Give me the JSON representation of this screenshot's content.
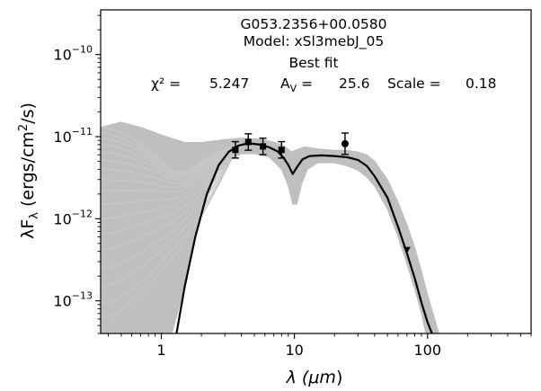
{
  "chart_data": {
    "type": "scatter",
    "title_lines": [
      "G053.2356+00.0580",
      "Model: xSl3mebJ_05",
      "Best fit"
    ],
    "fit": {
      "chi2_label": "χ² =",
      "chi2_value": "5.247",
      "av_label": "A",
      "av_sub": "V",
      "av_eq": " =",
      "av_value": "25.6",
      "scale_label": "Scale =",
      "scale_value": "0.18"
    },
    "xlabel": {
      "pre": "λ (",
      "unit": "μm",
      "post": ")"
    },
    "ylabel": {
      "pre": "λF",
      "sub": "λ",
      "mid": " (ergs/cm",
      "sup": "2",
      "post": "/s)"
    },
    "xscale": "log",
    "yscale": "log",
    "xlim": [
      0.35,
      600
    ],
    "ylim": [
      4e-14,
      3.5e-10
    ],
    "x_ticks": [
      {
        "value": 1,
        "label": "1"
      },
      {
        "value": 10,
        "label": "10"
      },
      {
        "value": 100,
        "label": "100"
      }
    ],
    "y_ticks": [
      {
        "value": 1e-13,
        "base": "10",
        "exp": "−13"
      },
      {
        "value": 1e-12,
        "base": "10",
        "exp": "−12"
      },
      {
        "value": 1e-11,
        "base": "10",
        "exp": "−11"
      },
      {
        "value": 1e-10,
        "base": "10",
        "exp": "−10"
      }
    ],
    "grid": false,
    "series": [
      {
        "role": "best-fit-model",
        "color": "#000000",
        "points": [
          [
            1.3,
            4e-14
          ],
          [
            1.5,
            1.5e-13
          ],
          [
            1.8,
            6e-13
          ],
          [
            2.2,
            2e-12
          ],
          [
            2.7,
            4.5e-12
          ],
          [
            3.2,
            6.5e-12
          ],
          [
            3.8,
            7.8e-12
          ],
          [
            4.5,
            8.3e-12
          ],
          [
            5.5,
            8e-12
          ],
          [
            6.5,
            7.4e-12
          ],
          [
            7.5,
            6.6e-12
          ],
          [
            8.3,
            5.5e-12
          ],
          [
            9.0,
            4.5e-12
          ],
          [
            9.7,
            3.5e-12
          ],
          [
            10.5,
            4.3e-12
          ],
          [
            11.5,
            5.3e-12
          ],
          [
            13,
            5.8e-12
          ],
          [
            16,
            5.9e-12
          ],
          [
            20,
            5.8e-12
          ],
          [
            25,
            5.6e-12
          ],
          [
            30,
            5.2e-12
          ],
          [
            35,
            4.4e-12
          ],
          [
            40,
            3.3e-12
          ],
          [
            50,
            1.8e-12
          ],
          [
            60,
            8e-13
          ],
          [
            70,
            3.8e-13
          ],
          [
            80,
            1.9e-13
          ],
          [
            90,
            9.5e-14
          ],
          [
            100,
            5.5e-14
          ],
          [
            108,
            4e-14
          ]
        ]
      },
      {
        "role": "model-envelope",
        "color": "#bfbfbf",
        "upper": [
          [
            0.35,
            1.3e-11
          ],
          [
            0.5,
            1.5e-11
          ],
          [
            0.7,
            1.3e-11
          ],
          [
            1.0,
            1.05e-11
          ],
          [
            1.5,
            8.5e-12
          ],
          [
            2.0,
            8.5e-12
          ],
          [
            3.0,
            9.2e-12
          ],
          [
            4.0,
            9.6e-12
          ],
          [
            5.5,
            9.3e-12
          ],
          [
            7.0,
            8.6e-12
          ],
          [
            8.5,
            7.6e-12
          ],
          [
            9.5,
            6.5e-12
          ],
          [
            10.5,
            7e-12
          ],
          [
            12,
            7.5e-12
          ],
          [
            15,
            7.1e-12
          ],
          [
            20,
            6.8e-12
          ],
          [
            25,
            6.8e-12
          ],
          [
            30,
            6.5e-12
          ],
          [
            35,
            6e-12
          ],
          [
            40,
            5e-12
          ],
          [
            50,
            3e-12
          ],
          [
            60,
            1.6e-12
          ],
          [
            70,
            8.5e-13
          ],
          [
            80,
            4.5e-13
          ],
          [
            90,
            2.3e-13
          ],
          [
            100,
            1.2e-13
          ],
          [
            110,
            7e-14
          ],
          [
            122,
            4e-14
          ]
        ],
        "lower": [
          [
            0.35,
            4e-14
          ],
          [
            1.2,
            4e-14
          ],
          [
            1.4,
            1e-13
          ],
          [
            1.7,
            4e-13
          ],
          [
            2.1,
            1.5e-12
          ],
          [
            2.6,
            3.5e-12
          ],
          [
            3.2,
            5.2e-12
          ],
          [
            4.0,
            6.2e-12
          ],
          [
            5.0,
            6.2e-12
          ],
          [
            6.5,
            5.6e-12
          ],
          [
            8.0,
            4e-12
          ],
          [
            9.0,
            2.5e-12
          ],
          [
            9.7,
            1.5e-12
          ],
          [
            10.4,
            1.5e-12
          ],
          [
            11.3,
            2.6e-12
          ],
          [
            12.5,
            4e-12
          ],
          [
            15,
            4.8e-12
          ],
          [
            20,
            4.8e-12
          ],
          [
            25,
            4.4e-12
          ],
          [
            30,
            3.9e-12
          ],
          [
            35,
            3.2e-12
          ],
          [
            40,
            2.5e-12
          ],
          [
            50,
            1.3e-12
          ],
          [
            60,
            6e-13
          ],
          [
            70,
            2.8e-13
          ],
          [
            80,
            1.4e-13
          ],
          [
            90,
            7e-14
          ],
          [
            97,
            4e-14
          ]
        ]
      },
      {
        "role": "model-traces",
        "color": "#c6c6c6",
        "short_wavelength_starts": [
          1.3e-11,
          1.1e-11,
          9.5e-12,
          8e-12,
          6.5e-12,
          5.2e-12,
          4e-12,
          3e-12,
          2.2e-12,
          1.5e-12,
          1e-12,
          6.5e-13,
          4.2e-13,
          2.5e-13,
          1.5e-13,
          9e-14,
          6e-14
        ]
      },
      {
        "role": "photometry-detections",
        "color": "#000000",
        "marker": "square",
        "points": [
          {
            "x": 3.6,
            "y": 6.9e-12,
            "err": 0.1
          },
          {
            "x": 4.5,
            "y": 8.6e-12,
            "err": 0.1
          },
          {
            "x": 5.8,
            "y": 7.6e-12,
            "err": 0.1
          },
          {
            "x": 8.0,
            "y": 6.9e-12,
            "err": 0.1
          }
        ]
      },
      {
        "role": "photometry-24um",
        "color": "#000000",
        "marker": "circle",
        "points": [
          {
            "x": 24,
            "y": 8.2e-12,
            "err": 0.13
          }
        ]
      },
      {
        "role": "photometry-upper-limit",
        "color": "#000000",
        "marker": "triangle-down",
        "points": [
          {
            "x": 70,
            "y": 4.2e-13
          }
        ]
      }
    ]
  }
}
